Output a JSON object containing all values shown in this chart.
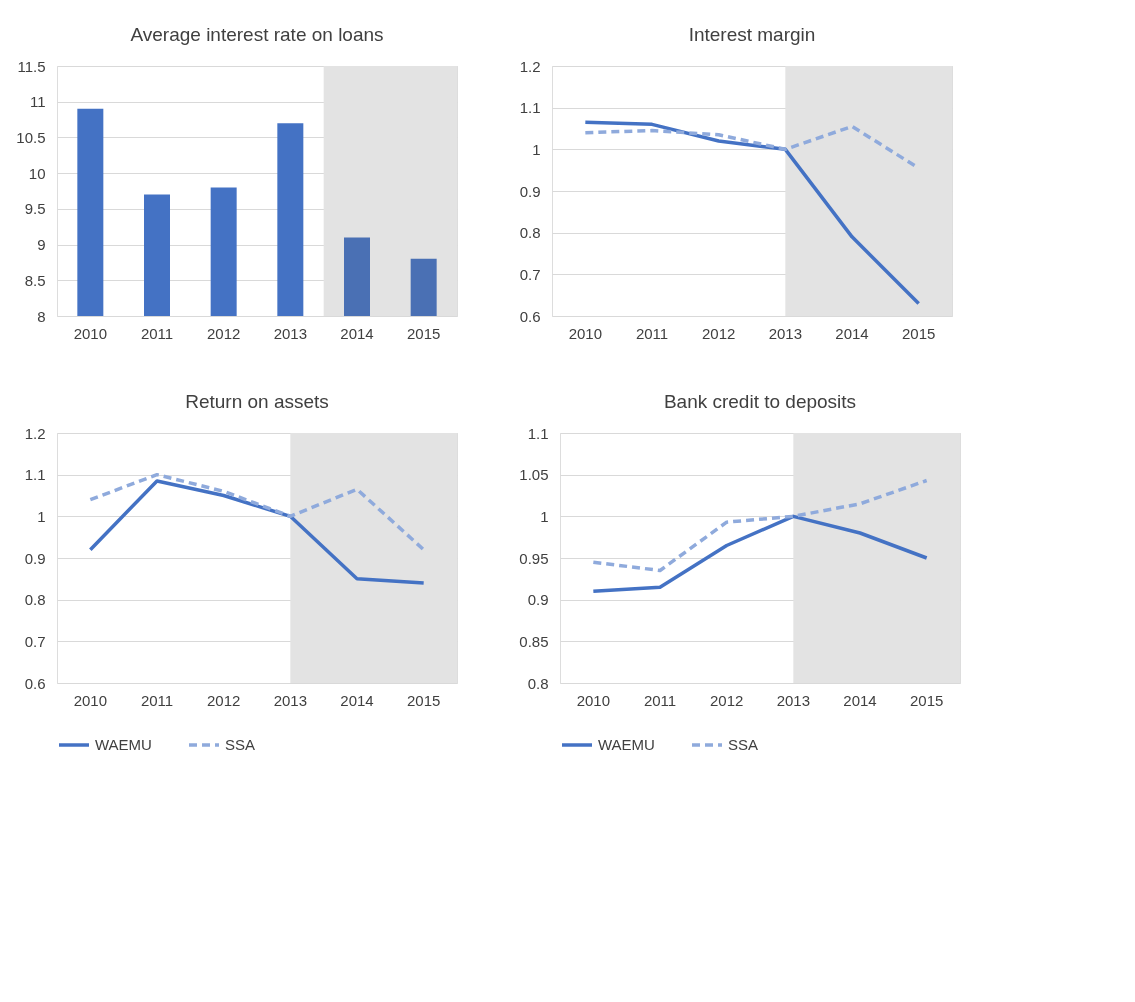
{
  "chart_data": [
    {
      "type": "bar",
      "title": "Average interest rate on loans",
      "categories": [
        "2010",
        "2011",
        "2012",
        "2013",
        "2014",
        "2015"
      ],
      "values": [
        10.9,
        9.7,
        9.8,
        10.7,
        9.1,
        8.8
      ],
      "colors": [
        "#4472c4",
        "#4472c4",
        "#4472c4",
        "#4472c4",
        "#4a70b4",
        "#4a70b4"
      ],
      "ylim": [
        8,
        11.5
      ],
      "yticks": [
        8,
        8.5,
        9,
        9.5,
        10,
        10.5,
        11,
        11.5
      ],
      "grid": "y",
      "bands": [
        {
          "axis": "x",
          "from": "2014",
          "to": "2015",
          "color": "#e3e3e3"
        }
      ]
    },
    {
      "type": "line",
      "title": "Interest margin",
      "categories": [
        "2010",
        "2011",
        "2012",
        "2013",
        "2014",
        "2015"
      ],
      "series": [
        {
          "color": "#4472c4",
          "line_style": "solid",
          "values": [
            1.065,
            1.06,
            1.02,
            1.0,
            0.79,
            0.63
          ]
        },
        {
          "color": "#8faadc",
          "line_style": "dashed",
          "values": [
            1.04,
            1.045,
            1.035,
            1.0,
            1.055,
            0.955
          ]
        }
      ],
      "ylim": [
        0.6,
        1.2
      ],
      "yticks": [
        0.6,
        0.7,
        0.8,
        0.9,
        1,
        1.1,
        1.2
      ],
      "grid": "y",
      "bands": [
        {
          "axis": "x",
          "from": "2013",
          "to": "2015",
          "color": "#e3e3e3"
        }
      ]
    },
    {
      "type": "line",
      "title": "Return on assets",
      "categories": [
        "2010",
        "2011",
        "2012",
        "2013",
        "2014",
        "2015"
      ],
      "series": [
        {
          "name": "WAEMU",
          "color": "#4472c4",
          "line_style": "solid",
          "values": [
            0.92,
            1.085,
            1.05,
            1.0,
            0.85,
            0.84
          ]
        },
        {
          "name": "SSA",
          "color": "#8faadc",
          "line_style": "dashed",
          "values": [
            1.04,
            1.1,
            1.06,
            1.0,
            1.065,
            0.92
          ]
        }
      ],
      "ylim": [
        0.6,
        1.2
      ],
      "yticks": [
        0.6,
        0.7,
        0.8,
        0.9,
        1,
        1.1,
        1.2
      ],
      "grid": "y",
      "legend": "bottom",
      "bands": [
        {
          "axis": "x",
          "from": "2013",
          "to": "2015",
          "color": "#e3e3e3"
        }
      ]
    },
    {
      "type": "line",
      "title": "Bank credit to deposits",
      "categories": [
        "2010",
        "2011",
        "2012",
        "2013",
        "2014",
        "2015"
      ],
      "series": [
        {
          "name": "WAEMU",
          "color": "#4472c4",
          "line_style": "solid",
          "values": [
            0.91,
            0.915,
            0.965,
            1.0,
            0.98,
            0.95
          ]
        },
        {
          "name": "SSA",
          "color": "#8faadc",
          "line_style": "dashed",
          "values": [
            0.945,
            0.935,
            0.993,
            1.0,
            1.015,
            1.043
          ]
        }
      ],
      "ylim": [
        0.8,
        1.1
      ],
      "yticks": [
        0.8,
        0.85,
        0.9,
        0.95,
        1,
        1.05,
        1.1
      ],
      "grid": "y",
      "legend": "bottom",
      "bands": [
        {
          "axis": "x",
          "from": "2013",
          "to": "2015",
          "color": "#e3e3e3"
        }
      ]
    }
  ]
}
